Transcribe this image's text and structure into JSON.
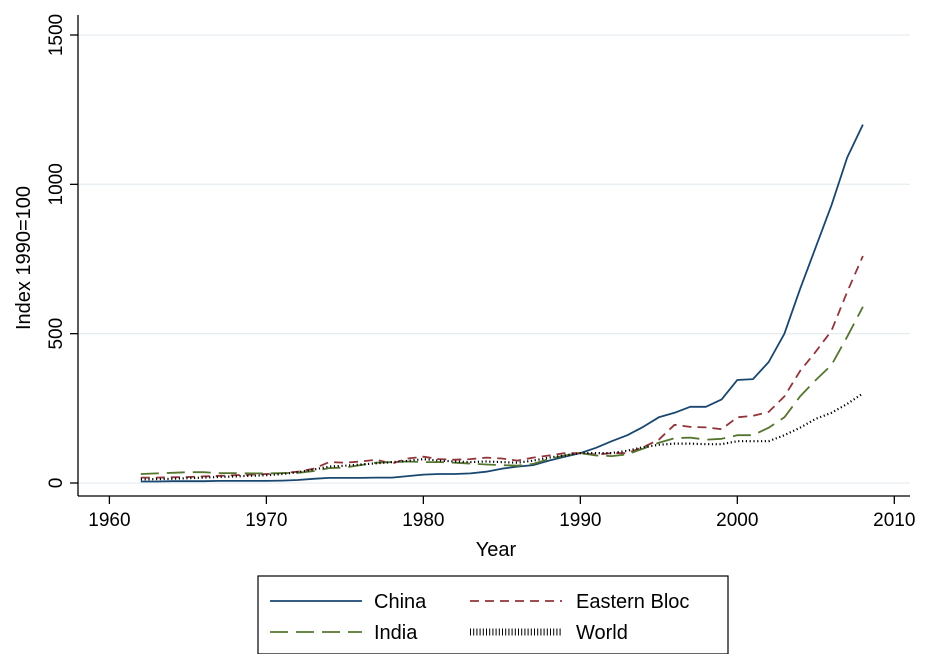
{
  "chart_data": {
    "type": "line",
    "title": "",
    "xlabel": "Year",
    "ylabel": "Index 1990=100",
    "xlim": [
      1958,
      2011
    ],
    "ylim": [
      0,
      1500
    ],
    "xticks": [
      1960,
      1970,
      1980,
      1990,
      2000,
      2010
    ],
    "yticks": [
      0,
      500,
      1000,
      1500
    ],
    "x_tick_labels": [
      "1960",
      "1970",
      "1980",
      "1990",
      "2000",
      "2010"
    ],
    "y_tick_labels": [
      "0",
      "500",
      "1000",
      "1500"
    ],
    "grid": true,
    "legend_position": "bottom",
    "x": [
      1962,
      1963,
      1964,
      1965,
      1966,
      1967,
      1968,
      1969,
      1970,
      1971,
      1972,
      1973,
      1974,
      1975,
      1976,
      1977,
      1978,
      1979,
      1980,
      1981,
      1982,
      1983,
      1984,
      1985,
      1986,
      1987,
      1988,
      1989,
      1990,
      1991,
      1992,
      1993,
      1994,
      1995,
      1996,
      1997,
      1998,
      1999,
      2000,
      2001,
      2002,
      2003,
      2004,
      2005,
      2006,
      2007,
      2008
    ],
    "series": [
      {
        "name": "China",
        "color": "#1a476f",
        "dash": "solid",
        "values": [
          5,
          5,
          6,
          6,
          6,
          7,
          7,
          7,
          7,
          8,
          10,
          14,
          17,
          17,
          17,
          18,
          18,
          23,
          28,
          30,
          30,
          32,
          38,
          48,
          55,
          60,
          75,
          88,
          100,
          118,
          140,
          160,
          188,
          220,
          235,
          255,
          255,
          280,
          345,
          348,
          405,
          500,
          650,
          790,
          930,
          1090,
          1200
        ]
      },
      {
        "name": "Eastern Bloc",
        "color": "#90353b",
        "dash": "short-dash",
        "values": [
          18,
          18,
          19,
          20,
          22,
          24,
          26,
          28,
          30,
          33,
          38,
          48,
          70,
          68,
          72,
          78,
          65,
          82,
          88,
          80,
          78,
          80,
          85,
          82,
          75,
          85,
          92,
          100,
          100,
          95,
          100,
          100,
          120,
          145,
          195,
          188,
          186,
          180,
          220,
          225,
          238,
          290,
          375,
          440,
          510,
          640,
          760
        ]
      },
      {
        "name": "India",
        "color": "#55752f",
        "dash": "long-dash",
        "values": [
          30,
          32,
          34,
          36,
          36,
          33,
          33,
          32,
          32,
          33,
          34,
          40,
          50,
          52,
          60,
          68,
          70,
          72,
          70,
          70,
          68,
          65,
          62,
          60,
          58,
          64,
          80,
          92,
          100,
          92,
          90,
          96,
          115,
          135,
          150,
          152,
          145,
          148,
          160,
          160,
          185,
          220,
          290,
          345,
          395,
          490,
          590
        ]
      },
      {
        "name": "World",
        "color": "#000000",
        "dash": "dotted",
        "values": [
          12,
          13,
          14,
          16,
          18,
          20,
          22,
          24,
          26,
          30,
          36,
          45,
          55,
          58,
          62,
          66,
          70,
          74,
          80,
          75,
          72,
          70,
          72,
          70,
          68,
          75,
          85,
          92,
          100,
          100,
          100,
          108,
          120,
          128,
          132,
          132,
          130,
          130,
          140,
          140,
          140,
          160,
          185,
          215,
          235,
          265,
          300
        ]
      }
    ]
  }
}
